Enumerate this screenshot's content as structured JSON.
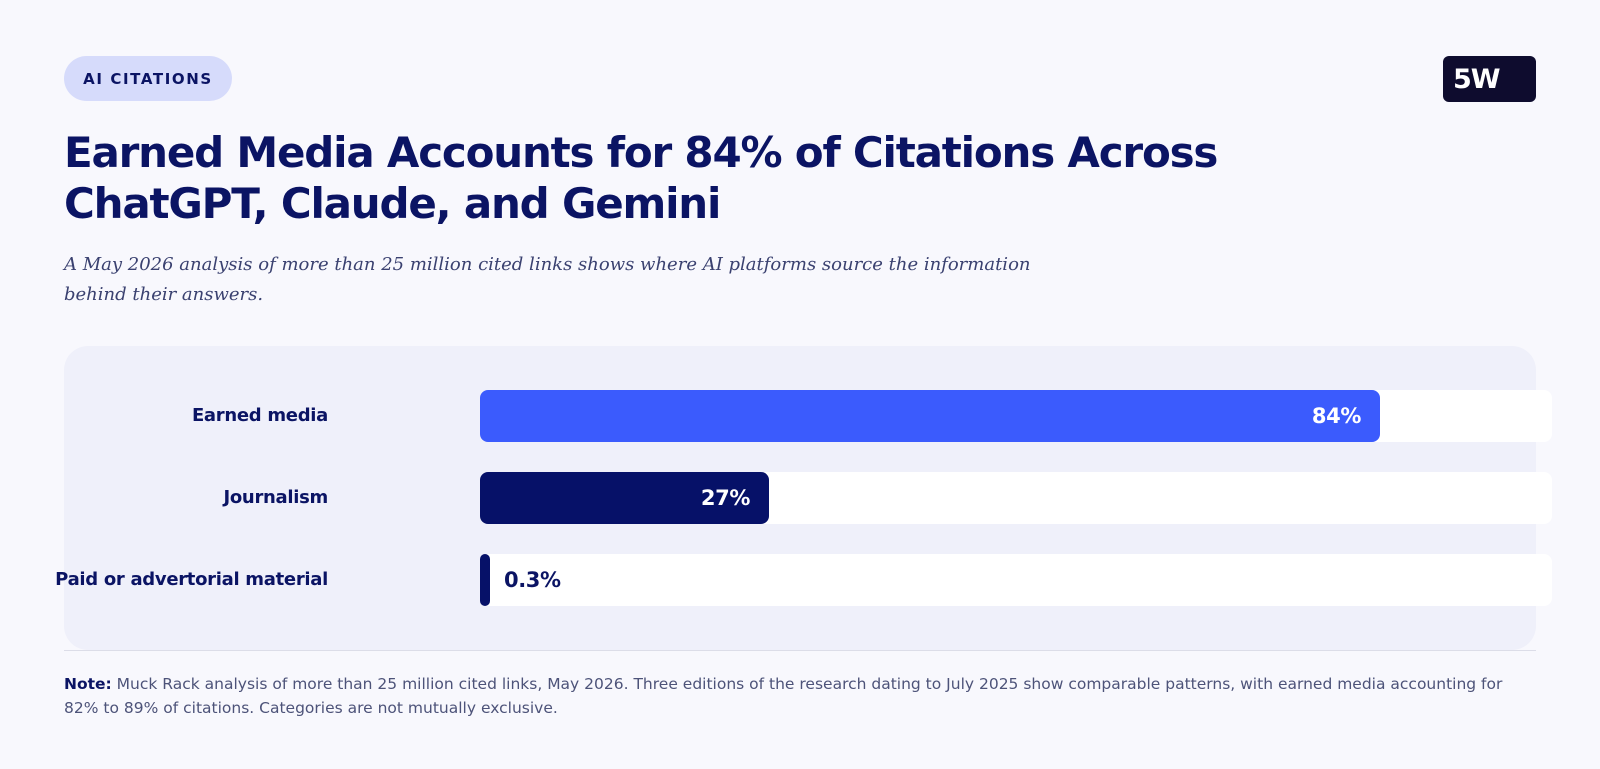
{
  "badge": "AI CITATIONS",
  "logo": "5W",
  "colors": {
    "earned": "#3b5bfd",
    "journalism": "#061168",
    "paid": "#061168",
    "text_dark": "#0b1464"
  },
  "chart_data": {
    "type": "bar",
    "orientation": "horizontal",
    "title": "Earned Media Accounts for 84% of Citations Across ChatGPT, Claude, and Gemini",
    "subtitle": "A May 2026 analysis of more than 25 million cited links shows where AI platforms source the information behind their answers.",
    "categories": [
      "Earned media",
      "Journalism",
      "Paid or advertorial material"
    ],
    "values": [
      84,
      27,
      0.3
    ],
    "value_labels": [
      "84%",
      "27%",
      "0.3%"
    ],
    "xlim": [
      0,
      100
    ],
    "bar_colors": [
      "#3b5bfd",
      "#061168",
      "#061168"
    ],
    "grid": false,
    "legend": "none"
  },
  "note": {
    "label": "Note:",
    "text": " Muck Rack analysis of more than 25 million cited links, May 2026. Three editions of the research dating to July 2025 show comparable patterns, with earned media accounting for 82% to 89% of citations. Categories are not mutually exclusive."
  }
}
